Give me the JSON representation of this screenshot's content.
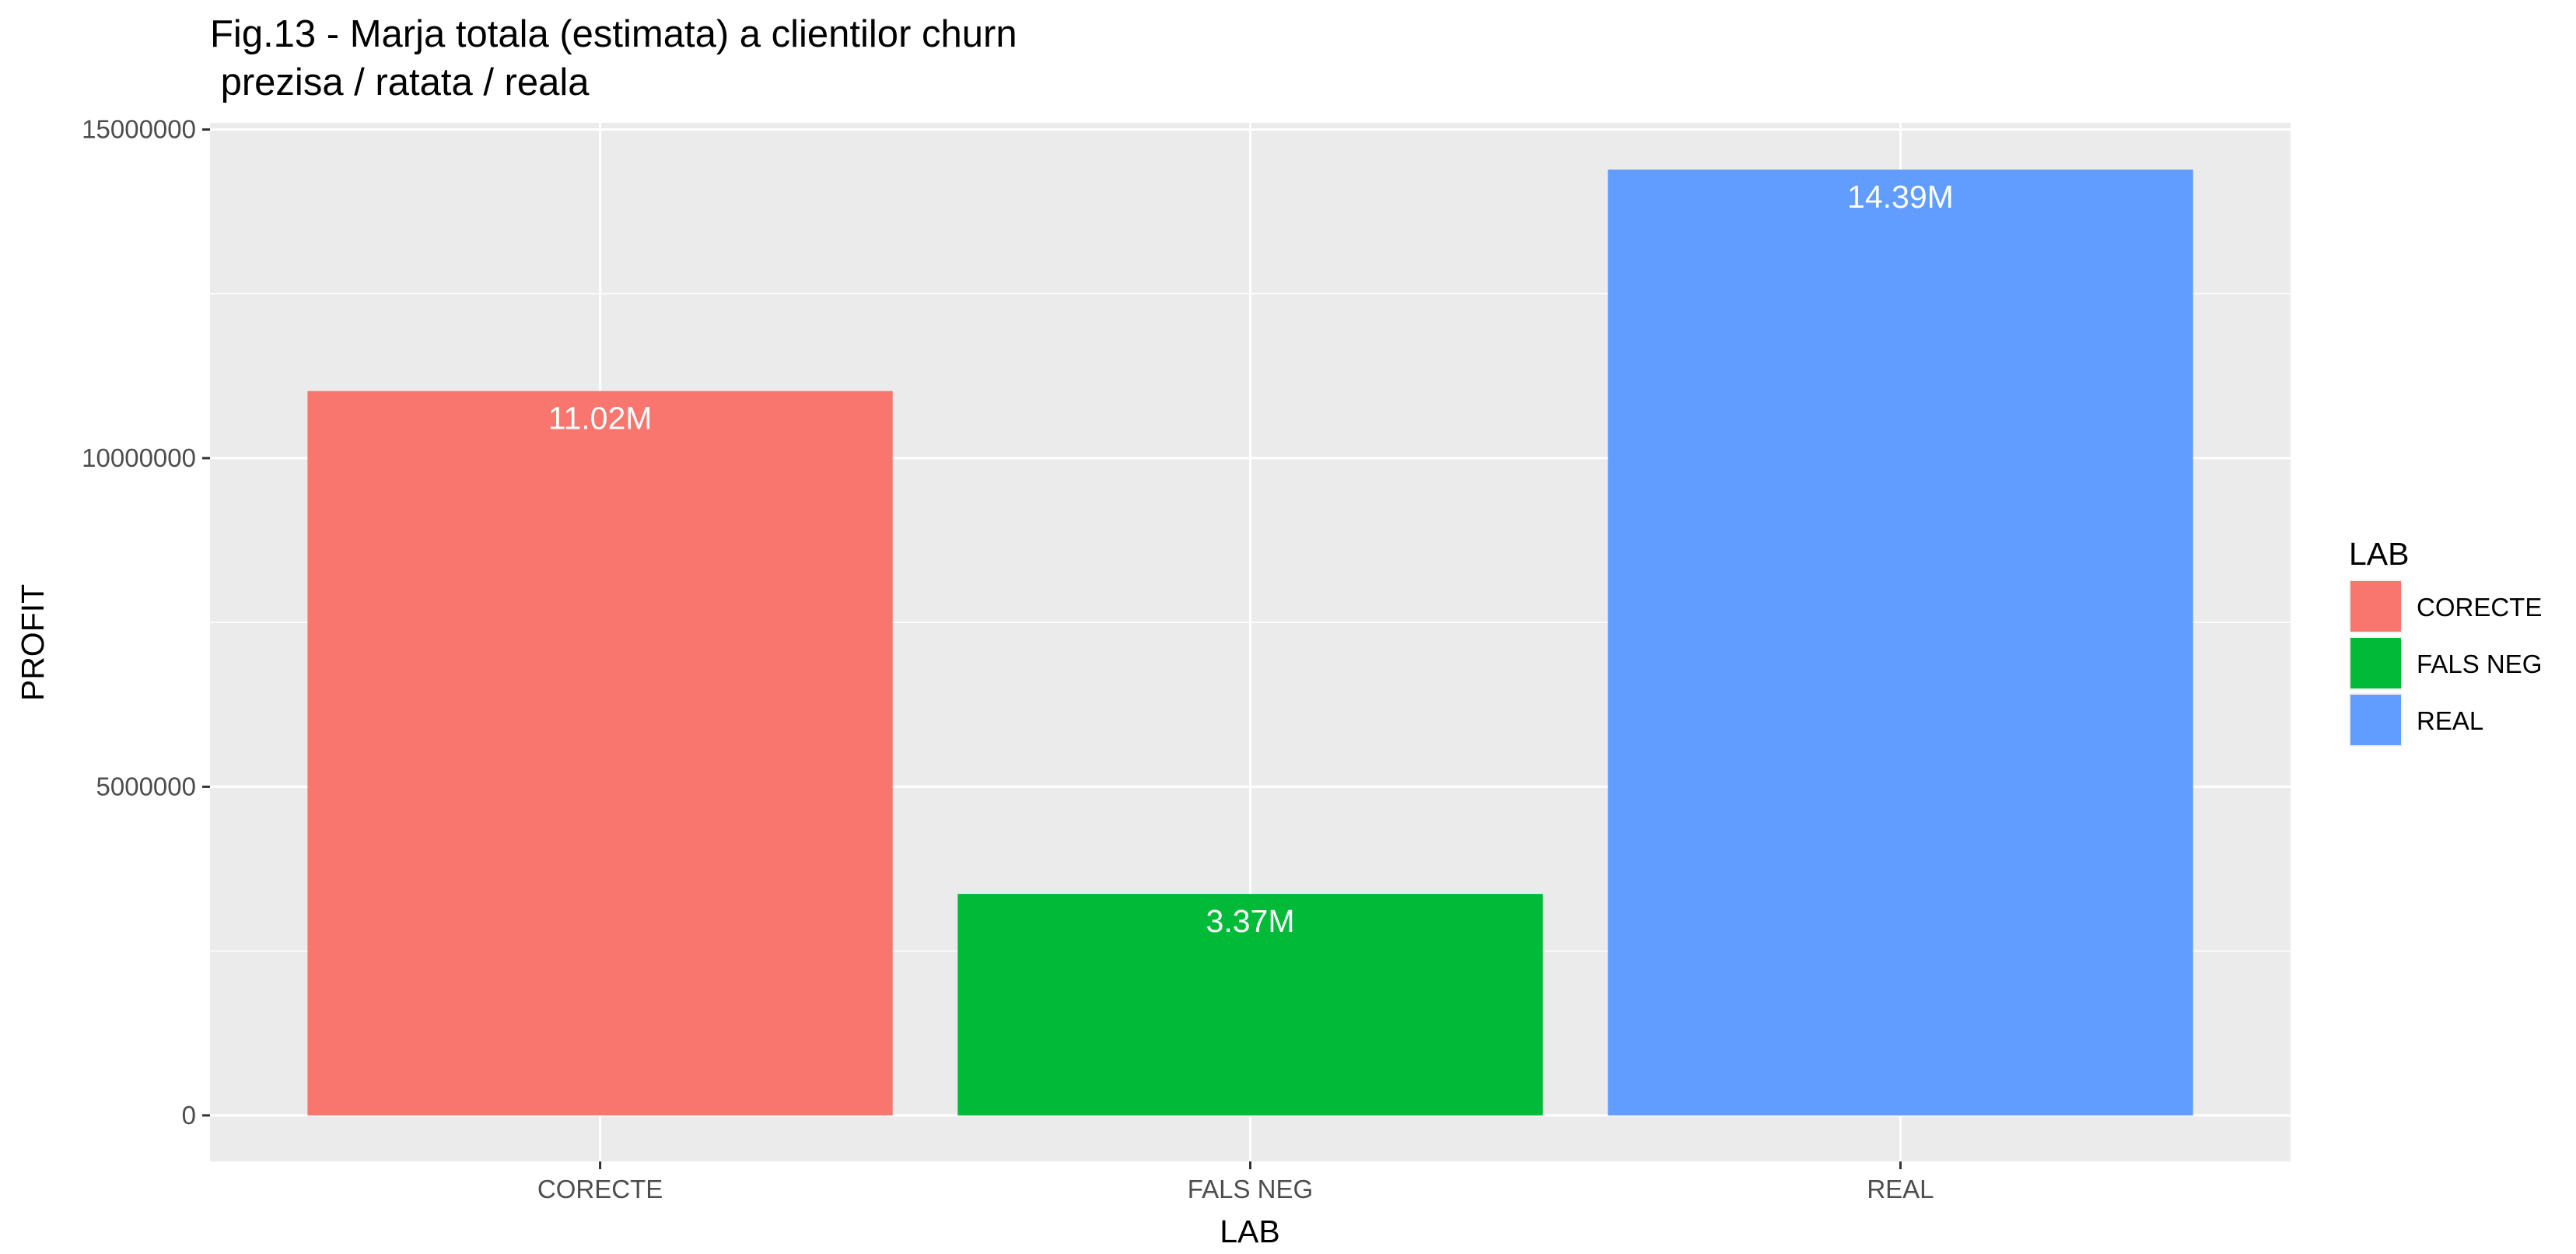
{
  "chart_data": {
    "type": "bar",
    "title_line1": "Fig.13 - Marja totala (estimata) a clientilor churn",
    "title_line2": " prezisa / ratata / reala",
    "xlabel": "LAB",
    "ylabel": "PROFIT",
    "categories": [
      "CORECTE",
      "FALS NEG",
      "REAL"
    ],
    "values": [
      11020000,
      3370000,
      14390000
    ],
    "data_labels": [
      "11.02M",
      "3.37M",
      "14.39M"
    ],
    "colors": [
      "#F8766D",
      "#00BA38",
      "#619CFF"
    ],
    "ylim": [
      -700000,
      15100000
    ],
    "yticks": [
      0,
      5000000,
      10000000,
      15000000
    ],
    "ytick_labels": [
      "0",
      "5000000",
      "10000000",
      "15000000"
    ],
    "grid": true,
    "legend": {
      "title": "LAB",
      "position": "right",
      "entries": [
        "CORECTE",
        "FALS NEG",
        "REAL"
      ]
    }
  }
}
